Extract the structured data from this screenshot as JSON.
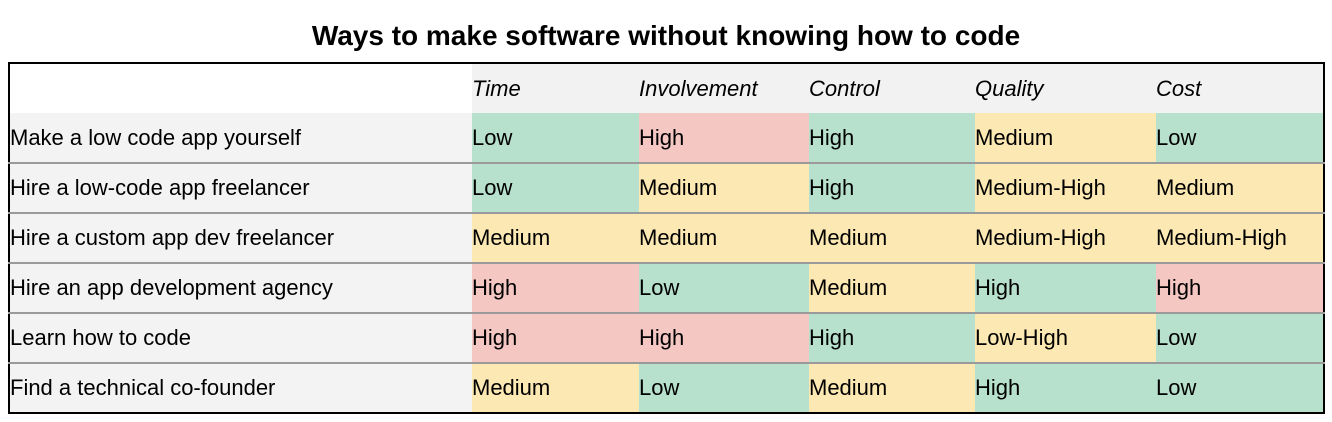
{
  "page": {
    "background": "#ffffff"
  },
  "chart_data": {
    "type": "table",
    "title": "Ways to make software without knowing how to code",
    "columns": [
      "Time",
      "Involvement",
      "Control",
      "Quality",
      "Cost"
    ],
    "rows": [
      {
        "label": "Make a low code app yourself",
        "cells": [
          {
            "text": "Low",
            "color": "green"
          },
          {
            "text": "High",
            "color": "red"
          },
          {
            "text": "High",
            "color": "green"
          },
          {
            "text": "Medium",
            "color": "yellow"
          },
          {
            "text": "Low",
            "color": "green"
          }
        ]
      },
      {
        "label": "Hire a low-code app freelancer",
        "cells": [
          {
            "text": "Low",
            "color": "green"
          },
          {
            "text": "Medium",
            "color": "yellow"
          },
          {
            "text": "High",
            "color": "green"
          },
          {
            "text": "Medium-High",
            "color": "yellow"
          },
          {
            "text": "Medium",
            "color": "yellow"
          }
        ]
      },
      {
        "label": "Hire a custom app dev freelancer",
        "cells": [
          {
            "text": "Medium",
            "color": "yellow"
          },
          {
            "text": "Medium",
            "color": "yellow"
          },
          {
            "text": "Medium",
            "color": "yellow"
          },
          {
            "text": "Medium-High",
            "color": "yellow"
          },
          {
            "text": "Medium-High",
            "color": "yellow"
          }
        ]
      },
      {
        "label": "Hire an app development agency",
        "cells": [
          {
            "text": "High",
            "color": "red"
          },
          {
            "text": "Low",
            "color": "green"
          },
          {
            "text": "Medium",
            "color": "yellow"
          },
          {
            "text": "High",
            "color": "green"
          },
          {
            "text": "High",
            "color": "red"
          }
        ]
      },
      {
        "label": "Learn how to code",
        "cells": [
          {
            "text": "High",
            "color": "red"
          },
          {
            "text": "High",
            "color": "red"
          },
          {
            "text": "High",
            "color": "green"
          },
          {
            "text": "Low-High",
            "color": "yellow"
          },
          {
            "text": "Low",
            "color": "green"
          }
        ]
      },
      {
        "label": "Find a technical co-founder",
        "cells": [
          {
            "text": "Medium",
            "color": "yellow"
          },
          {
            "text": "Low",
            "color": "green"
          },
          {
            "text": "Medium",
            "color": "yellow"
          },
          {
            "text": "High",
            "color": "green"
          },
          {
            "text": "Low",
            "color": "green"
          }
        ]
      }
    ],
    "palette": {
      "green": "#b7e1cd",
      "yellow": "#fce8b2",
      "red": "#f4c7c3"
    },
    "style_colors": {
      "header_bg": "#f2f2f2",
      "label_bg": "#f3f3f3",
      "gridline": "#9a9a9a",
      "outer_border": "#000000",
      "text": "#000000"
    }
  }
}
